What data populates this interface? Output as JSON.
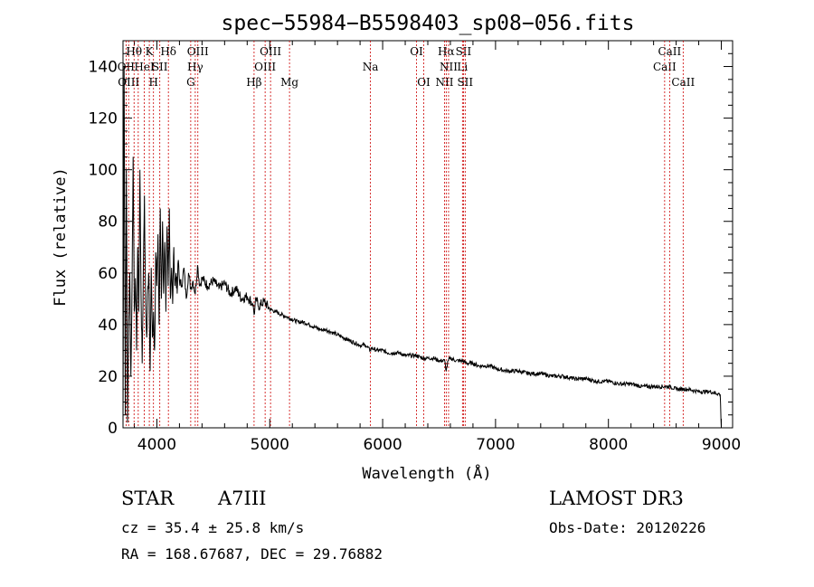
{
  "chart_data": {
    "type": "line",
    "title": "spec−55984−B5598403_sp08−056.fits",
    "xlabel": "Wavelength (Å)",
    "ylabel": "Flux (relative)",
    "xlim": [
      3700,
      9100
    ],
    "ylim": [
      0,
      150
    ],
    "xticks": [
      4000,
      5000,
      6000,
      7000,
      8000,
      9000
    ],
    "yticks": [
      0,
      20,
      40,
      60,
      80,
      100,
      120,
      140
    ],
    "grid": false,
    "series": [
      {
        "name": "spectrum",
        "color": "#000000",
        "x": [
          3700,
          3710,
          3720,
          3730,
          3740,
          3750,
          3760,
          3770,
          3780,
          3790,
          3800,
          3810,
          3820,
          3830,
          3840,
          3850,
          3860,
          3870,
          3880,
          3890,
          3900,
          3910,
          3920,
          3930,
          3940,
          3950,
          3960,
          3970,
          3980,
          3990,
          4000,
          4010,
          4020,
          4030,
          4040,
          4050,
          4060,
          4070,
          4080,
          4090,
          4100,
          4110,
          4120,
          4130,
          4140,
          4150,
          4160,
          4170,
          4180,
          4190,
          4200,
          4220,
          4240,
          4260,
          4280,
          4300,
          4320,
          4340,
          4360,
          4380,
          4400,
          4450,
          4500,
          4550,
          4600,
          4650,
          4700,
          4750,
          4800,
          4850,
          4861,
          4880,
          4900,
          4950,
          5000,
          5050,
          5100,
          5150,
          5200,
          5250,
          5300,
          5350,
          5400,
          5450,
          5500,
          5550,
          5600,
          5650,
          5700,
          5750,
          5800,
          5850,
          5890,
          5900,
          5950,
          6000,
          6050,
          6100,
          6150,
          6200,
          6250,
          6300,
          6350,
          6400,
          6450,
          6500,
          6550,
          6563,
          6580,
          6600,
          6650,
          6700,
          6750,
          6800,
          6850,
          6900,
          6950,
          7000,
          7100,
          7200,
          7300,
          7400,
          7500,
          7600,
          7700,
          7800,
          7900,
          8000,
          8100,
          8200,
          8300,
          8400,
          8498,
          8542,
          8600,
          8662,
          8700,
          8800,
          8900,
          8990,
          9000
        ],
        "values": [
          0,
          140,
          5,
          100,
          2,
          40,
          60,
          20,
          55,
          105,
          45,
          58,
          30,
          70,
          45,
          100,
          50,
          25,
          62,
          90,
          48,
          35,
          55,
          58,
          22,
          62,
          35,
          45,
          30,
          68,
          55,
          75,
          40,
          85,
          50,
          80,
          52,
          72,
          45,
          78,
          55,
          85,
          50,
          62,
          48,
          70,
          55,
          60,
          52,
          65,
          57,
          55,
          62,
          50,
          60,
          54,
          57,
          52,
          63,
          55,
          58,
          55,
          57,
          54,
          56,
          52,
          54,
          50,
          51,
          48,
          44,
          50,
          47,
          49,
          46,
          45,
          44,
          43,
          42,
          41,
          41,
          40,
          39,
          38,
          38,
          37,
          36,
          35,
          34,
          33,
          32,
          32,
          30,
          31,
          30,
          30,
          29,
          29,
          29,
          28,
          28,
          28,
          27,
          27,
          27,
          26,
          26,
          22,
          26,
          27,
          26,
          26,
          25,
          25,
          24,
          24,
          24,
          23,
          22,
          22,
          21,
          21,
          20,
          20,
          19,
          19,
          18,
          18,
          17,
          17,
          16,
          16,
          16,
          16,
          15,
          15,
          15,
          14,
          14,
          13,
          0
        ]
      }
    ],
    "line_groups": [
      {
        "color": "#cc0000",
        "lines": [
          {
            "wavelength": 3727,
            "label": "OII",
            "row": 1
          },
          {
            "wavelength": 3750,
            "label": "OIII",
            "row": 2
          },
          {
            "wavelength": 3798,
            "label": "Hθ",
            "row": 0
          },
          {
            "wavelength": 3835,
            "label": "",
            "row": 1
          },
          {
            "wavelength": 3889,
            "label": "HeI",
            "row": 1
          },
          {
            "wavelength": 3933,
            "label": "K",
            "row": 0
          },
          {
            "wavelength": 3970,
            "label": "H",
            "row": 2
          },
          {
            "wavelength": 4026,
            "label": "SII",
            "row": 1
          },
          {
            "wavelength": 4102,
            "label": "Hδ",
            "row": 0
          },
          {
            "wavelength": 4300,
            "label": "G",
            "row": 2
          },
          {
            "wavelength": 4340,
            "label": "Hγ",
            "row": 1
          },
          {
            "wavelength": 4363,
            "label": "OIII",
            "row": 0
          },
          {
            "wavelength": 4861,
            "label": "Hβ",
            "row": 2
          },
          {
            "wavelength": 4959,
            "label": "OIII",
            "row": 1
          },
          {
            "wavelength": 5007,
            "label": "OIII",
            "row": 0
          },
          {
            "wavelength": 5175,
            "label": "Mg",
            "row": 2
          },
          {
            "wavelength": 5892,
            "label": "Na",
            "row": 1
          },
          {
            "wavelength": 6300,
            "label": "OI",
            "row": 0
          },
          {
            "wavelength": 6364,
            "label": "OI",
            "row": 2
          },
          {
            "wavelength": 6548,
            "label": "NII",
            "row": 2
          },
          {
            "wavelength": 6563,
            "label": "Hα",
            "row": 0
          },
          {
            "wavelength": 6584,
            "label": "NII",
            "row": 1
          },
          {
            "wavelength": 6707,
            "label": "Li",
            "row": 1
          },
          {
            "wavelength": 6716,
            "label": "SII",
            "row": 0
          },
          {
            "wavelength": 6731,
            "label": "SII",
            "row": 2
          },
          {
            "wavelength": 8498,
            "label": "CaII",
            "row": 1
          },
          {
            "wavelength": 8542,
            "label": "CaII",
            "row": 0
          },
          {
            "wavelength": 8662,
            "label": "CaII",
            "row": 2
          }
        ]
      }
    ]
  },
  "info": {
    "class_label": "STAR",
    "subclass": "A7III",
    "survey": "LAMOST DR3",
    "cz": "cz = 35.4 ± 25.8 km/s",
    "obs_date": "Obs-Date: 20120226",
    "coords": "RA = 168.67687, DEC =  29.76882"
  }
}
